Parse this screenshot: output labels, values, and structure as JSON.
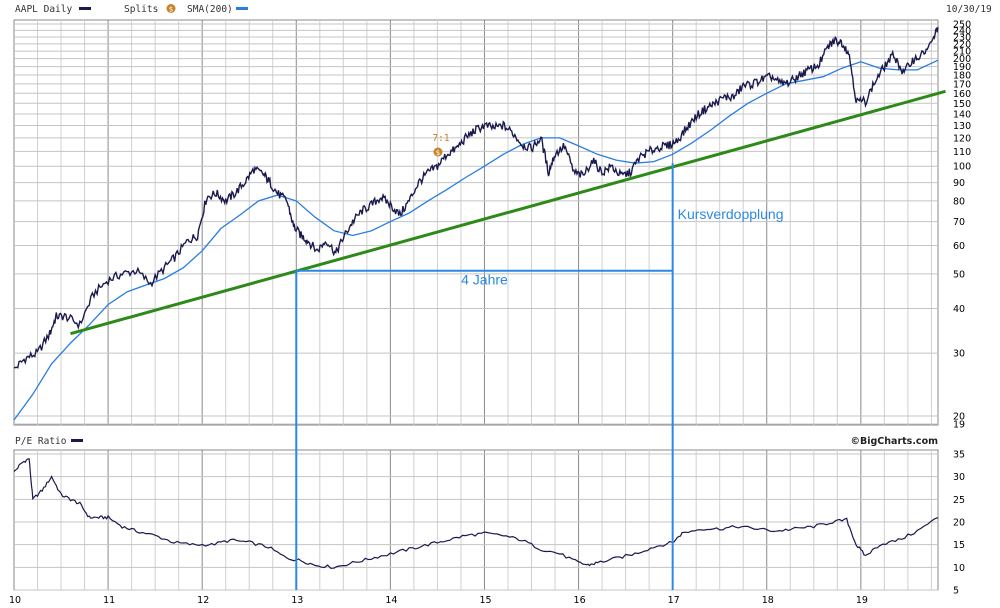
{
  "header": {
    "symbol_label": "AAPL Daily",
    "splits_label": "Splits",
    "splits_icon": "dollar-coin-icon",
    "sma_label": "SMA(200)",
    "date_label": "10/30/19",
    "split_marker_label": "7:1",
    "credit_label": "©BigCharts.com"
  },
  "colors": {
    "price_line": "#1a1a4e",
    "sma_line": "#2a7de1",
    "trend_line": "#2d8a18",
    "annotation": "#2a88e6",
    "split_coin": "#c8822a",
    "grid": "#b8b8b8"
  },
  "chart_data": [
    {
      "type": "line",
      "title": "AAPL Daily",
      "scale": "log",
      "ylim": [
        19,
        250
      ],
      "y_ticks": [
        19,
        20,
        30,
        40,
        50,
        60,
        70,
        80,
        90,
        100,
        110,
        120,
        130,
        140,
        150,
        160,
        170,
        180,
        190,
        200,
        210,
        220,
        230,
        240,
        250
      ],
      "x_ticks": [
        "10",
        "11",
        "12",
        "13",
        "14",
        "15",
        "16",
        "17",
        "18",
        "19"
      ],
      "xlim": [
        10.0,
        19.82
      ],
      "grid": true,
      "series": [
        {
          "name": "AAPL Daily",
          "x": [
            10.0,
            10.12,
            10.25,
            10.38,
            10.45,
            10.55,
            10.7,
            10.85,
            11.0,
            11.15,
            11.3,
            11.45,
            11.6,
            11.72,
            11.85,
            11.95,
            12.05,
            12.15,
            12.25,
            12.35,
            12.45,
            12.55,
            12.65,
            12.72,
            12.8,
            12.9,
            12.97,
            13.05,
            13.12,
            13.22,
            13.32,
            13.42,
            13.5,
            13.6,
            13.7,
            13.8,
            13.9,
            14.0,
            14.1,
            14.2,
            14.3,
            14.4,
            14.5,
            14.6,
            14.7,
            14.8,
            14.9,
            15.0,
            15.1,
            15.2,
            15.3,
            15.4,
            15.5,
            15.6,
            15.68,
            15.75,
            15.85,
            15.95,
            16.05,
            16.15,
            16.25,
            16.35,
            16.45,
            16.55,
            16.65,
            16.75,
            16.85,
            16.95,
            17.05,
            17.15,
            17.25,
            17.35,
            17.45,
            17.55,
            17.65,
            17.75,
            17.85,
            17.95,
            18.05,
            18.15,
            18.25,
            18.35,
            18.45,
            18.55,
            18.65,
            18.72,
            18.8,
            18.87,
            18.95,
            19.05,
            19.15,
            19.25,
            19.35,
            19.45,
            19.55,
            19.65,
            19.75,
            19.82
          ],
          "values": [
            27,
            29,
            30,
            34,
            38,
            38,
            36,
            44,
            48,
            50,
            51,
            47,
            52,
            56,
            62,
            64,
            82,
            84,
            80,
            84,
            90,
            98,
            95,
            90,
            84,
            80,
            68,
            64,
            62,
            58,
            62,
            57,
            63,
            70,
            75,
            78,
            82,
            78,
            73,
            80,
            90,
            96,
            100,
            108,
            112,
            120,
            126,
            130,
            128,
            130,
            124,
            115,
            112,
            120,
            96,
            108,
            114,
            96,
            94,
            104,
            96,
            100,
            94,
            96,
            106,
            110,
            113,
            114,
            118,
            128,
            138,
            145,
            150,
            156,
            156,
            168,
            170,
            175,
            178,
            170,
            172,
            180,
            186,
            192,
            215,
            225,
            222,
            208,
            152,
            152,
            172,
            190,
            205,
            182,
            198,
            205,
            220,
            245
          ]
        },
        {
          "name": "SMA(200)",
          "x": [
            10.0,
            10.2,
            10.4,
            10.6,
            10.8,
            11.0,
            11.2,
            11.4,
            11.6,
            11.8,
            12.0,
            12.2,
            12.4,
            12.6,
            12.8,
            13.0,
            13.2,
            13.4,
            13.6,
            13.8,
            14.0,
            14.2,
            14.4,
            14.6,
            14.8,
            15.0,
            15.2,
            15.4,
            15.6,
            15.8,
            16.0,
            16.2,
            16.4,
            16.6,
            16.8,
            17.0,
            17.2,
            17.4,
            17.6,
            17.8,
            18.0,
            18.2,
            18.4,
            18.6,
            18.8,
            19.0,
            19.2,
            19.4,
            19.6,
            19.82
          ],
          "values": [
            19.5,
            23,
            28,
            32,
            36,
            41,
            44.5,
            46.5,
            48.5,
            52,
            58,
            67,
            73,
            80,
            83,
            80,
            72,
            66,
            64,
            66,
            70,
            74,
            80,
            86,
            93,
            100,
            108,
            115,
            120,
            120,
            114,
            108,
            104,
            102,
            103,
            108,
            116,
            126,
            138,
            150,
            160,
            170,
            174,
            178,
            188,
            196,
            188,
            186,
            186,
            198
          ]
        }
      ],
      "annotations": {
        "split_label": "7:1",
        "trend_label": "",
        "measure_horizontal_label": "4 Jahre",
        "measure_vertical_label": "Kursverdopplung",
        "trend_start": {
          "x": 10.6,
          "y": 34
        },
        "trend_end": {
          "x": 19.9,
          "y": 162
        },
        "measure_from": {
          "x": 13.0,
          "y": 51
        },
        "measure_to": {
          "x": 17.0,
          "y": 102
        }
      }
    },
    {
      "type": "line",
      "title": "P/E Ratio",
      "ylim": [
        5,
        35
      ],
      "y_ticks": [
        5,
        10,
        15,
        20,
        25,
        30,
        35
      ],
      "xlim": [
        10.0,
        19.82
      ],
      "grid": true,
      "series": [
        {
          "name": "P/E Ratio",
          "x": [
            10.0,
            10.08,
            10.16,
            10.2,
            10.3,
            10.4,
            10.5,
            10.6,
            10.7,
            10.8,
            10.9,
            11.0,
            11.15,
            11.3,
            11.5,
            11.7,
            11.9,
            12.1,
            12.3,
            12.5,
            12.7,
            12.9,
            13.05,
            13.2,
            13.4,
            13.6,
            13.8,
            14.0,
            14.2,
            14.4,
            14.6,
            14.8,
            15.0,
            15.2,
            15.4,
            15.6,
            15.8,
            16.0,
            16.1,
            16.2,
            16.4,
            16.6,
            16.8,
            17.0,
            17.1,
            17.3,
            17.5,
            17.7,
            17.9,
            18.1,
            18.3,
            18.5,
            18.7,
            18.85,
            18.95,
            19.05,
            19.2,
            19.4,
            19.6,
            19.82
          ],
          "values": [
            31,
            33,
            34,
            25,
            27,
            30,
            26,
            25,
            24,
            21,
            21,
            21,
            19,
            18,
            17,
            15.5,
            15,
            15,
            16,
            15.5,
            14.5,
            12,
            11.5,
            10.5,
            10,
            11,
            12,
            13,
            14,
            15,
            16,
            17,
            17.5,
            17,
            16,
            14,
            13,
            11,
            10.5,
            11,
            12,
            13,
            14.5,
            15.5,
            17.5,
            18.5,
            18.5,
            19,
            18.5,
            18,
            18.5,
            19,
            20,
            20.5,
            15,
            12.5,
            15,
            16,
            18,
            21
          ]
        }
      ]
    }
  ]
}
